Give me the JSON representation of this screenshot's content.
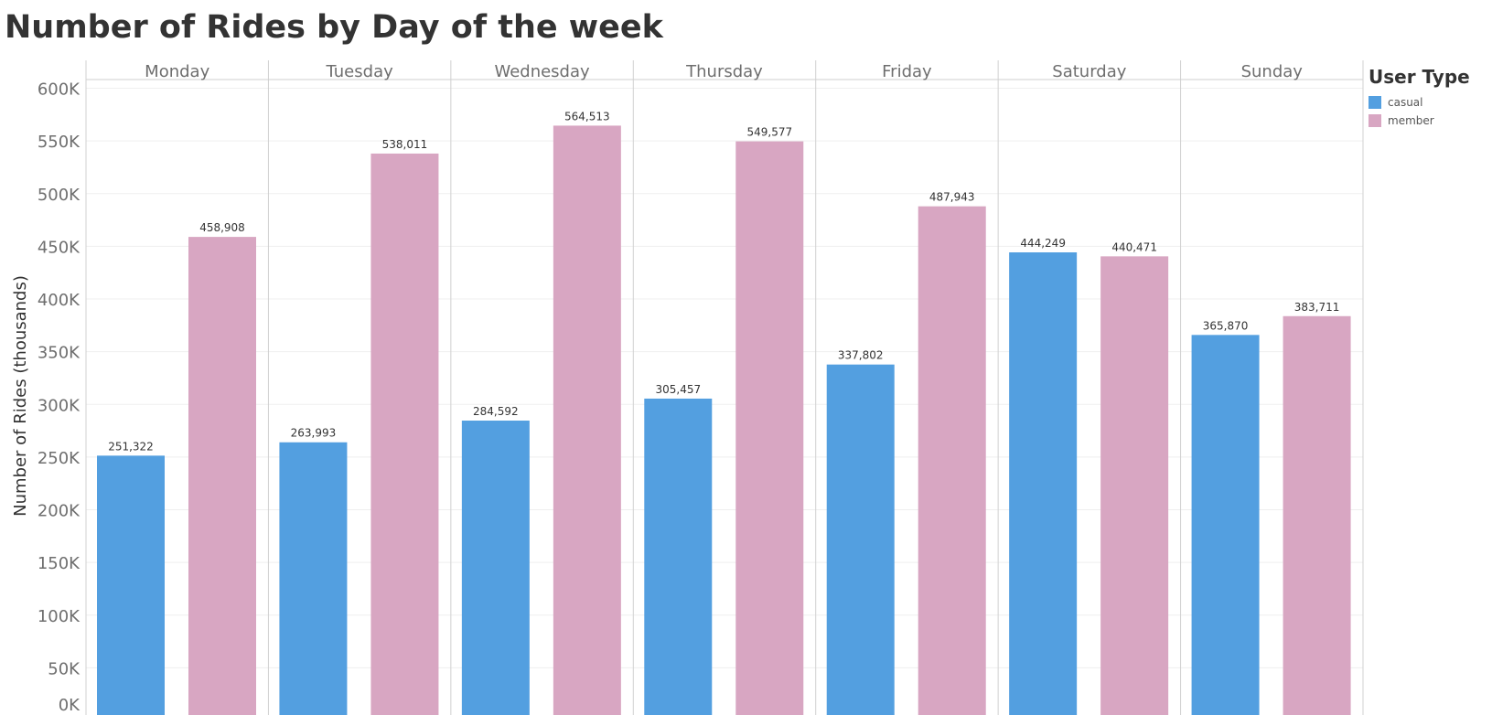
{
  "chart_data": {
    "type": "bar",
    "title": "Number of Rides by Day of the week",
    "xlabel": "",
    "ylabel": "Number of Rides (thousands)",
    "categories": [
      "Monday",
      "Tuesday",
      "Wednesday",
      "Thursday",
      "Friday",
      "Saturday",
      "Sunday"
    ],
    "series": [
      {
        "name": "casual",
        "color": "#539fe0",
        "values": [
          251322,
          263993,
          284592,
          305457,
          337802,
          444249,
          365870
        ],
        "labels": [
          "251,322",
          "263,993",
          "284,592",
          "305,457",
          "337,802",
          "444,249",
          "365,870"
        ]
      },
      {
        "name": "member",
        "color": "#d8a6c2",
        "values": [
          458908,
          538011,
          564513,
          549577,
          487943,
          440471,
          383711
        ],
        "labels": [
          "458,908",
          "538,011",
          "564,513",
          "549,577",
          "487,943",
          "440,471",
          "383,711"
        ]
      }
    ],
    "yticks": [
      {
        "value": 0,
        "label": "0K"
      },
      {
        "value": 50000,
        "label": "50K"
      },
      {
        "value": 100000,
        "label": "100K"
      },
      {
        "value": 150000,
        "label": "150K"
      },
      {
        "value": 200000,
        "label": "200K"
      },
      {
        "value": 250000,
        "label": "250K"
      },
      {
        "value": 300000,
        "label": "300K"
      },
      {
        "value": 350000,
        "label": "350K"
      },
      {
        "value": 400000,
        "label": "400K"
      },
      {
        "value": 450000,
        "label": "450K"
      },
      {
        "value": 500000,
        "label": "500K"
      },
      {
        "value": 550000,
        "label": "550K"
      },
      {
        "value": 600000,
        "label": "600K"
      }
    ],
    "ylim": [
      0,
      600000
    ],
    "grid": true,
    "legend": {
      "title": "User Type",
      "placement": "right"
    }
  }
}
